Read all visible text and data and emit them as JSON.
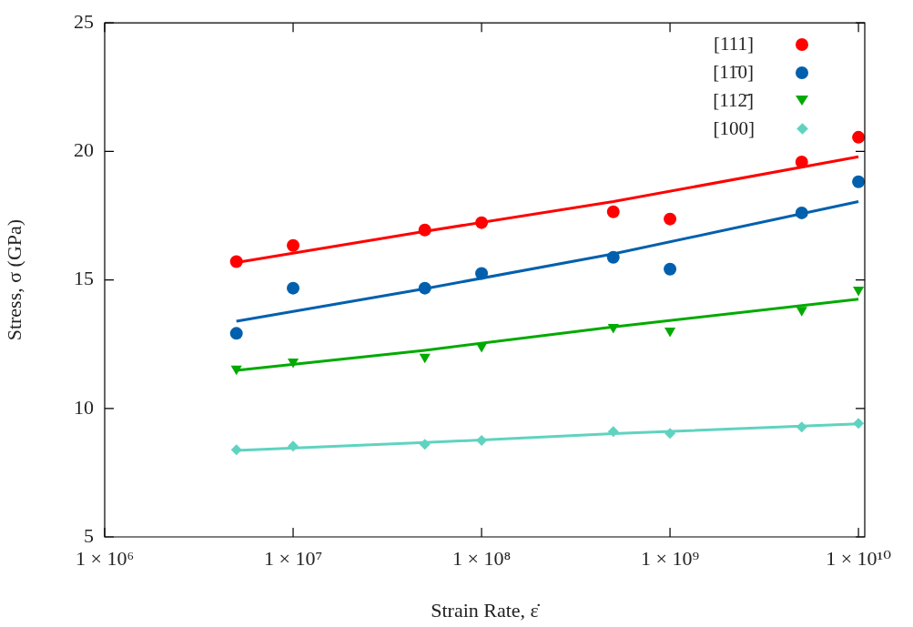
{
  "chart_data": {
    "type": "scatter",
    "xlabel": "Strain Rate, ε̇",
    "ylabel": "Stress, σ (GPa)",
    "log": "x",
    "legend": "top right",
    "xlim": [
      1000000,
      10800000000
    ],
    "xticks": [
      {
        "value": 1000000,
        "label": "1 × 10⁶"
      },
      {
        "value": 10000000,
        "label": "1 × 10⁷"
      },
      {
        "value": 100000000,
        "label": "1 × 10⁸"
      },
      {
        "value": 1000000000,
        "label": "1 × 10⁹"
      },
      {
        "value": 10000000000,
        "label": "1 × 10¹⁰"
      }
    ],
    "ylim": [
      5,
      25
    ],
    "yticks": [
      5,
      10,
      15,
      20,
      25
    ],
    "x": [
      5000000,
      10000000,
      50000000,
      100000000,
      500000000,
      1000000000,
      5000000000,
      10000000000
    ],
    "series": [
      {
        "name": "[111]",
        "color": "#ff0000",
        "marker": "circle",
        "values": [
          15.71,
          16.34,
          16.94,
          17.23,
          17.65,
          17.37,
          19.59,
          20.55
        ]
      },
      {
        "name": "[11̄0]",
        "color": "#0060ad",
        "marker": "circle",
        "values": [
          12.92,
          14.68,
          14.68,
          15.25,
          15.88,
          15.42,
          17.61,
          18.82
        ]
      },
      {
        "name": "[112̄]",
        "color": "#00aa00",
        "marker": "triangle",
        "values": [
          11.54,
          11.82,
          12.0,
          12.42,
          13.16,
          13.02,
          13.83,
          14.61
        ]
      },
      {
        "name": "[100]",
        "color": "#5fd3c0",
        "marker": "diamond",
        "values": [
          8.39,
          8.53,
          8.6,
          8.75,
          9.1,
          9.03,
          9.28,
          9.42
        ]
      },
      {
        "type": "line",
        "color": "#ff0000",
        "marker": "none",
        "x": [
          5000000,
          50000000,
          500000000,
          10000000000
        ],
        "values": [
          15.68,
          16.89,
          18.05,
          19.79
        ]
      },
      {
        "type": "line",
        "color": "#0060ad",
        "marker": "none",
        "x": [
          5000000,
          50000000,
          500000000,
          10000000000
        ],
        "values": [
          13.39,
          14.66,
          16.01,
          18.05
        ]
      },
      {
        "type": "line",
        "color": "#00aa00",
        "marker": "none",
        "x": [
          5000000,
          50000000,
          500000000,
          10000000000
        ],
        "values": [
          11.48,
          12.26,
          13.17,
          14.25
        ]
      },
      {
        "type": "line",
        "color": "#5fd3c0",
        "marker": "none",
        "x": [
          5000000,
          50000000,
          500000000,
          10000000000
        ],
        "values": [
          8.36,
          8.67,
          9.02,
          9.4
        ]
      }
    ]
  }
}
